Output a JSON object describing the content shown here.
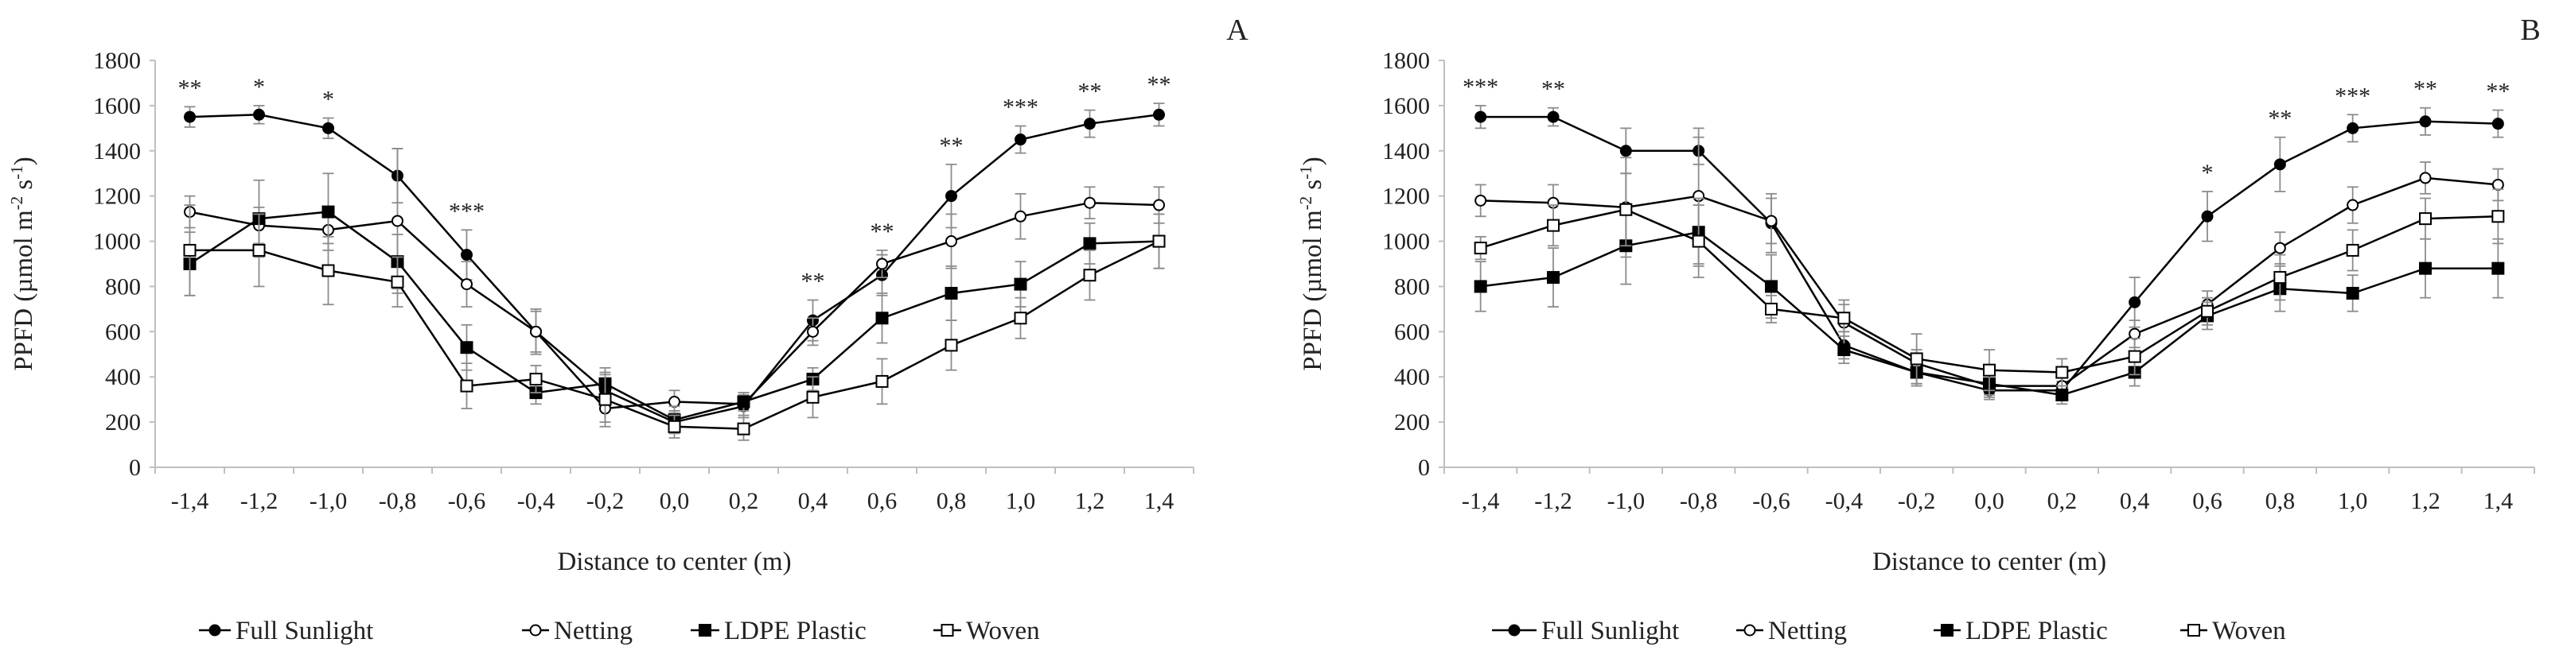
{
  "chart_data": [
    {
      "type": "line",
      "panel_label": "A",
      "ylabel": "PPFD (µmol m",
      "ylabel_sup1": "-2",
      "ylabel_mid": " s",
      "ylabel_sup2": "-1",
      "ylabel_end": ")",
      "xlabel": "Distance to center (m)",
      "ylim": [
        0,
        1800
      ],
      "yticks": [
        "0",
        "200",
        "400",
        "600",
        "800",
        "1000",
        "1200",
        "1400",
        "1600",
        "1800"
      ],
      "categories": [
        "-1,4",
        "-1,2",
        "-1,0",
        "-0,8",
        "-0,6",
        "-0,4",
        "-0,2",
        "0,0",
        "0,2",
        "0,4",
        "0,6",
        "0,8",
        "1,0",
        "1,2",
        "1,4"
      ],
      "significance": [
        "**",
        "*",
        "*",
        "",
        "***",
        "",
        "",
        "",
        "",
        "**",
        "**",
        "**",
        "***",
        "**",
        "**"
      ],
      "series": [
        {
          "name": "Full Sunlight",
          "marker": "circle",
          "fill": "filled",
          "values": [
            1550,
            1560,
            1500,
            1290,
            940,
            600,
            340,
            200,
            270,
            650,
            850,
            1200,
            1450,
            1520,
            1560
          ],
          "errors": [
            45,
            40,
            45,
            120,
            110,
            100,
            70,
            50,
            50,
            90,
            90,
            140,
            60,
            60,
            50
          ]
        },
        {
          "name": "Netting",
          "marker": "circle",
          "fill": "open",
          "values": [
            1130,
            1070,
            1050,
            1090,
            810,
            600,
            260,
            290,
            280,
            600,
            900,
            1000,
            1110,
            1170,
            1160
          ],
          "errors": [
            70,
            80,
            60,
            320,
            100,
            90,
            60,
            50,
            50,
            60,
            60,
            120,
            100,
            70,
            80
          ]
        },
        {
          "name": "LDPE Plastic",
          "marker": "square",
          "fill": "filled",
          "values": [
            900,
            1100,
            1130,
            910,
            530,
            330,
            370,
            210,
            290,
            390,
            660,
            770,
            810,
            990,
            1000
          ],
          "errors": [
            140,
            170,
            170,
            120,
            100,
            50,
            70,
            60,
            40,
            50,
            110,
            120,
            100,
            90,
            120
          ]
        },
        {
          "name": "Woven",
          "marker": "square",
          "fill": "open",
          "values": [
            960,
            960,
            870,
            820,
            360,
            390,
            300,
            180,
            170,
            310,
            380,
            540,
            660,
            850,
            1000
          ],
          "errors": [
            200,
            160,
            150,
            110,
            100,
            60,
            120,
            50,
            50,
            90,
            100,
            110,
            90,
            110,
            120
          ]
        }
      ]
    },
    {
      "type": "line",
      "panel_label": "B",
      "ylabel": "PPFD (µmol m",
      "ylabel_sup1": "-2",
      "ylabel_mid": " s",
      "ylabel_sup2": "-1",
      "ylabel_end": ")",
      "xlabel": "Distance to center (m)",
      "ylim": [
        0,
        1800
      ],
      "yticks": [
        "0",
        "200",
        "400",
        "600",
        "800",
        "1000",
        "1200",
        "1400",
        "1600",
        "1800"
      ],
      "categories": [
        "-1,4",
        "-1,2",
        "-1,0",
        "-0,8",
        "-0,6",
        "-0,4",
        "-0,2",
        "0,0",
        "0,2",
        "0,4",
        "0,6",
        "0,8",
        "1,0",
        "1,2",
        "1,4"
      ],
      "significance": [
        "***",
        "**",
        "",
        "",
        "",
        "",
        "",
        "",
        "",
        "",
        "*",
        "**",
        "***",
        "**",
        "**"
      ],
      "series": [
        {
          "name": "Full Sunlight",
          "marker": "circle",
          "fill": "filled",
          "values": [
            1550,
            1550,
            1400,
            1400,
            1080,
            540,
            420,
            340,
            340,
            730,
            1110,
            1340,
            1500,
            1530,
            1520
          ],
          "errors": [
            50,
            40,
            100,
            60,
            130,
            60,
            60,
            40,
            40,
            110,
            110,
            120,
            60,
            60,
            60
          ]
        },
        {
          "name": "Netting",
          "marker": "circle",
          "fill": "open",
          "values": [
            1180,
            1170,
            1150,
            1200,
            1090,
            640,
            460,
            360,
            360,
            590,
            720,
            970,
            1160,
            1280,
            1250
          ],
          "errors": [
            70,
            80,
            220,
            300,
            100,
            100,
            60,
            50,
            50,
            60,
            60,
            70,
            80,
            70,
            70
          ]
        },
        {
          "name": "LDPE Plastic",
          "marker": "square",
          "fill": "filled",
          "values": [
            800,
            840,
            980,
            1040,
            800,
            520,
            420,
            370,
            320,
            420,
            670,
            790,
            770,
            880,
            880
          ],
          "errors": [
            110,
            130,
            170,
            150,
            140,
            60,
            50,
            50,
            40,
            60,
            60,
            100,
            80,
            130,
            130
          ]
        },
        {
          "name": "Woven",
          "marker": "square",
          "fill": "open",
          "values": [
            970,
            1070,
            1140,
            1000,
            700,
            660,
            480,
            430,
            420,
            490,
            690,
            840,
            960,
            1100,
            1110
          ],
          "errors": [
            50,
            90,
            160,
            160,
            60,
            60,
            110,
            90,
            60,
            80,
            60,
            100,
            90,
            90,
            120
          ]
        }
      ]
    }
  ]
}
